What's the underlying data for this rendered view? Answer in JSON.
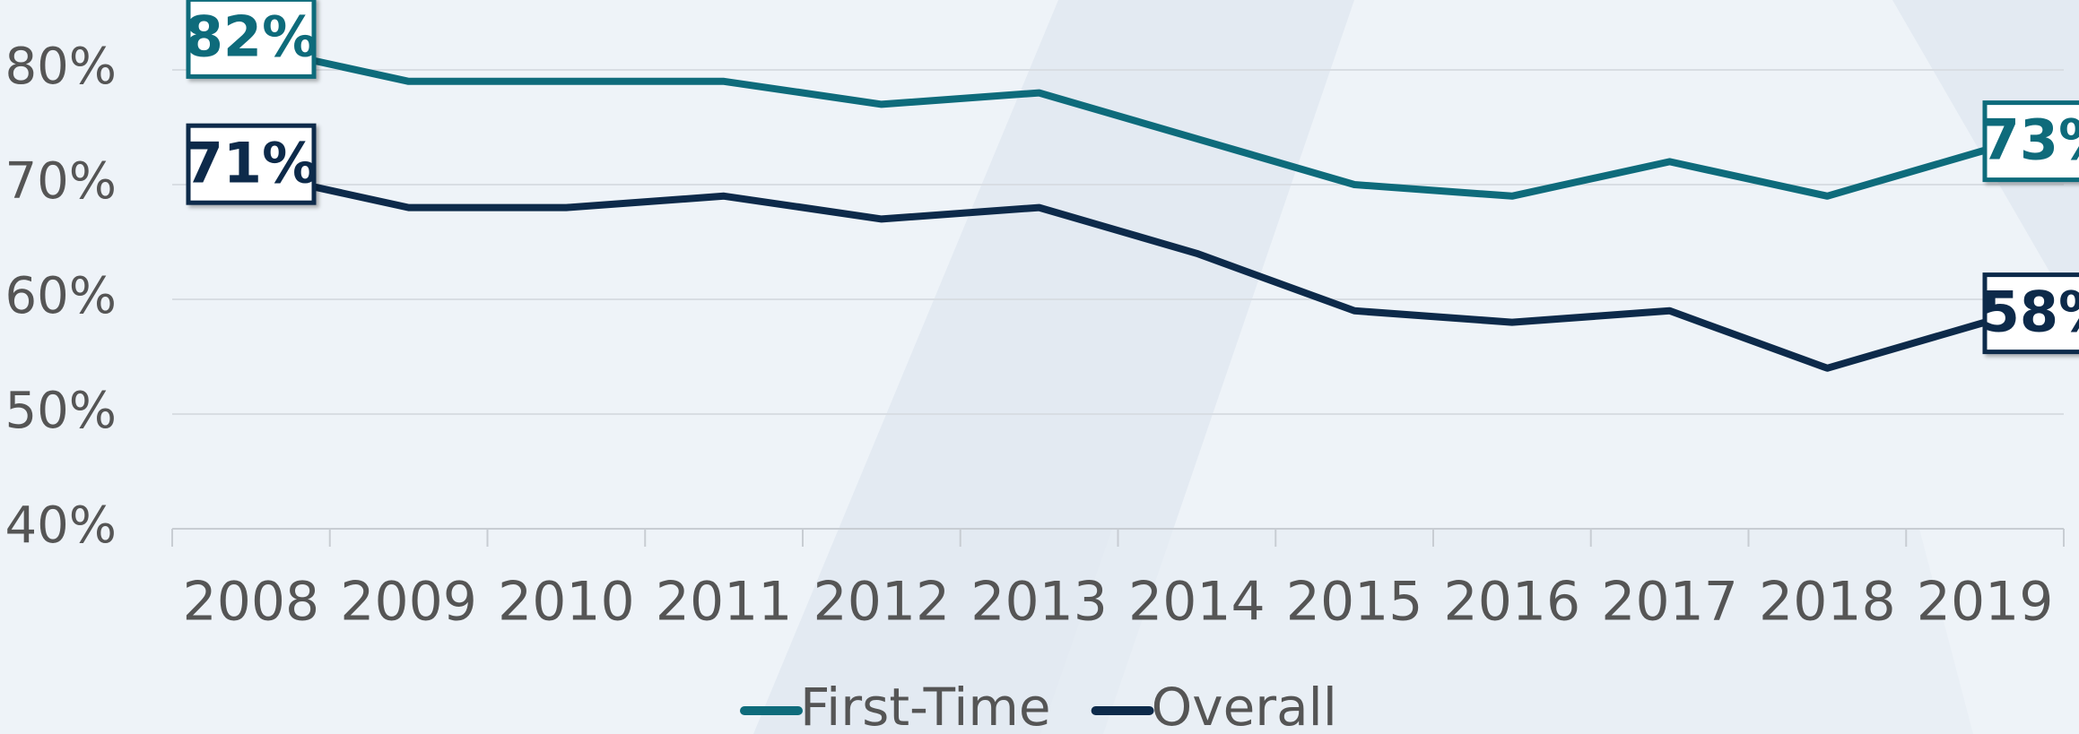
{
  "chart_data": {
    "type": "line",
    "categories": [
      "2008",
      "2009",
      "2010",
      "2011",
      "2012",
      "2013",
      "2014",
      "2015",
      "2016",
      "2017",
      "2018",
      "2019"
    ],
    "series": [
      {
        "name": "First-Time",
        "color": "#0e6b7b",
        "values": [
          82,
          79,
          79,
          79,
          77,
          78,
          74,
          70,
          69,
          72,
          69,
          73
        ],
        "value_labels": [
          "82%",
          null,
          null,
          null,
          null,
          null,
          null,
          null,
          null,
          null,
          null,
          "73%"
        ]
      },
      {
        "name": "Overall",
        "color": "#0d2a4a",
        "values": [
          71,
          68,
          68,
          69,
          67,
          68,
          64,
          59,
          58,
          59,
          54,
          58
        ],
        "value_labels": [
          "71%",
          null,
          null,
          null,
          null,
          null,
          null,
          null,
          null,
          null,
          null,
          "58%"
        ]
      }
    ],
    "ylim": [
      40,
      80
    ],
    "yticks": [
      {
        "value": 40,
        "label": "40%"
      },
      {
        "value": 50,
        "label": "50%"
      },
      {
        "value": 60,
        "label": "60%"
      },
      {
        "value": 70,
        "label": "70%"
      },
      {
        "value": 80,
        "label": "80%"
      }
    ],
    "grid": true,
    "legend": "bottom"
  }
}
